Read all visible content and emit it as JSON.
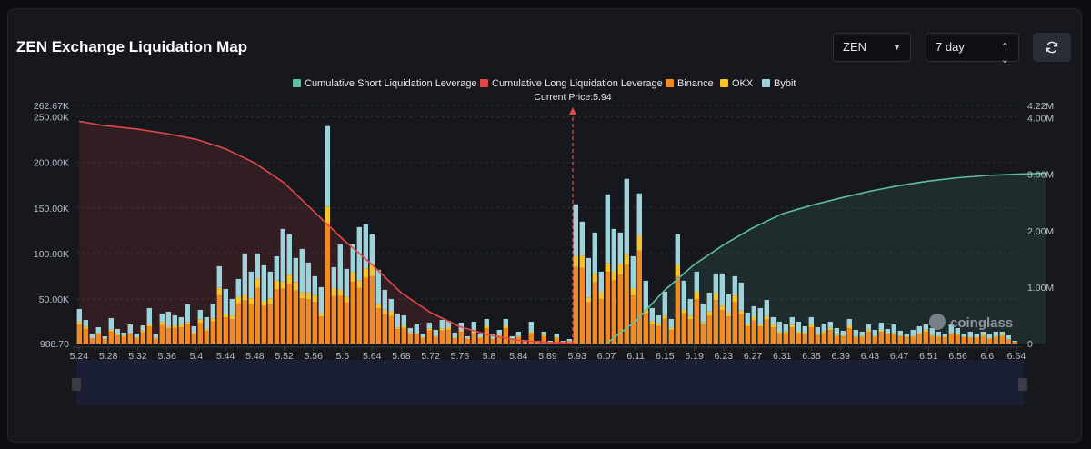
{
  "header": {
    "title": "ZEN Exchange Liquidation Map",
    "coin_select": "ZEN",
    "period_select": "7 day"
  },
  "icons": {
    "refresh": "refresh-icon",
    "dropdown": "caret-down-icon",
    "stepper": "up-down-chevron-icon",
    "watermark": "coinglass-logo-icon"
  },
  "watermark": "coinglass",
  "colors": {
    "short_cum": "#5fbfa5",
    "long_cum": "#e0484a",
    "binance": "#f08a24",
    "okx": "#f5c428",
    "bybit": "#9fd3dc"
  },
  "chart_data": {
    "type": "bar",
    "current_price_label": "Current Price:5.94",
    "current_price": 5.94,
    "legend": [
      {
        "name": "Cumulative Short Liquidation Leverage",
        "color": "#5fbfa5"
      },
      {
        "name": "Cumulative Long Liquidation Leverage",
        "color": "#e0484a"
      },
      {
        "name": "Binance",
        "color": "#f08a24"
      },
      {
        "name": "OKX",
        "color": "#f5c428"
      },
      {
        "name": "Bybit",
        "color": "#9fd3dc"
      }
    ],
    "x_ticks": [
      "5.24",
      "5.28",
      "5.32",
      "5.36",
      "5.4",
      "5.44",
      "5.48",
      "5.52",
      "5.56",
      "5.6",
      "5.64",
      "5.68",
      "5.72",
      "5.76",
      "5.8",
      "5.84",
      "5.89",
      "5.93",
      "6.07",
      "6.11",
      "6.15",
      "6.19",
      "6.23",
      "6.27",
      "6.31",
      "6.35",
      "6.39",
      "6.43",
      "6.47",
      "6.51",
      "6.56",
      "6.6",
      "6.64"
    ],
    "y_left_ticks": [
      "262.67K",
      "250.00K",
      "200.00K",
      "150.00K",
      "100.00K",
      "50.00K",
      "988.70"
    ],
    "y_left_values": [
      262670,
      250000,
      200000,
      150000,
      100000,
      50000,
      988.7
    ],
    "y_right_ticks": [
      "4.22M",
      "4.00M",
      "3.00M",
      "2.00M",
      "1.00M",
      "0"
    ],
    "y_right_values": [
      4220000,
      4000000,
      3000000,
      2000000,
      1000000,
      0
    ],
    "ylim_left": [
      988.7,
      262670
    ],
    "ylim_right": [
      0,
      4220000
    ],
    "bar_totals": [
      39000,
      27000,
      12000,
      19000,
      9000,
      29000,
      17000,
      13000,
      22000,
      12000,
      21000,
      40000,
      11000,
      34000,
      36000,
      32000,
      30000,
      44000,
      20000,
      38000,
      30000,
      45000,
      86000,
      61000,
      50000,
      72000,
      100000,
      80000,
      100000,
      87000,
      80000,
      97000,
      127000,
      121000,
      95000,
      105000,
      90000,
      75000,
      63000,
      240000,
      85000,
      110000,
      83000,
      110000,
      129000,
      132000,
      121000,
      82000,
      60000,
      50000,
      34000,
      32000,
      18000,
      22000,
      12000,
      24000,
      16000,
      27000,
      26000,
      13000,
      24000,
      9000,
      25000,
      12000,
      28000,
      11000,
      16000,
      28000,
      9000,
      14000,
      4000,
      25000,
      4000,
      14000,
      4000,
      12000,
      4000,
      6000,
      154000,
      135000,
      95000,
      123000,
      80000,
      165000,
      127000,
      123000,
      182000,
      97000,
      166000,
      70000,
      40000,
      32000,
      58000,
      28000,
      121000,
      70000,
      50000,
      80000,
      45000,
      57000,
      78000,
      78000,
      55000,
      75000,
      68000,
      35000,
      42000,
      40000,
      49000,
      30000,
      25000,
      22000,
      30000,
      25000,
      20000,
      30000,
      19000,
      22000,
      25000,
      18000,
      15000,
      28000,
      16000,
      14000,
      22000,
      16000,
      24000,
      17000,
      22000,
      15000,
      12000,
      16000,
      20000,
      22000,
      18000,
      14000,
      12000,
      22000,
      18000,
      12000,
      14000,
      12000,
      14000,
      12000,
      14000,
      14000,
      10000,
      4000
    ],
    "long_cumulative_points": [
      [
        5.24,
        3.94
      ],
      [
        5.27,
        3.87
      ],
      [
        5.32,
        3.8
      ],
      [
        5.36,
        3.72
      ],
      [
        5.4,
        3.62
      ],
      [
        5.44,
        3.45
      ],
      [
        5.48,
        3.2
      ],
      [
        5.52,
        2.85
      ],
      [
        5.56,
        2.35
      ],
      [
        5.6,
        1.85
      ],
      [
        5.64,
        1.4
      ],
      [
        5.68,
        0.9
      ],
      [
        5.72,
        0.55
      ],
      [
        5.76,
        0.3
      ],
      [
        5.8,
        0.15
      ],
      [
        5.84,
        0.06
      ],
      [
        5.89,
        0.02
      ],
      [
        5.93,
        0
      ]
    ],
    "short_cumulative_points": [
      [
        6.07,
        0
      ],
      [
        6.11,
        0.4
      ],
      [
        6.15,
        0.95
      ],
      [
        6.19,
        1.4
      ],
      [
        6.23,
        1.75
      ],
      [
        6.27,
        2.05
      ],
      [
        6.31,
        2.3
      ],
      [
        6.35,
        2.45
      ],
      [
        6.39,
        2.58
      ],
      [
        6.43,
        2.7
      ],
      [
        6.47,
        2.8
      ],
      [
        6.51,
        2.88
      ],
      [
        6.56,
        2.94
      ],
      [
        6.6,
        2.98
      ],
      [
        6.64,
        3.0
      ],
      [
        6.68,
        3.02
      ]
    ]
  }
}
